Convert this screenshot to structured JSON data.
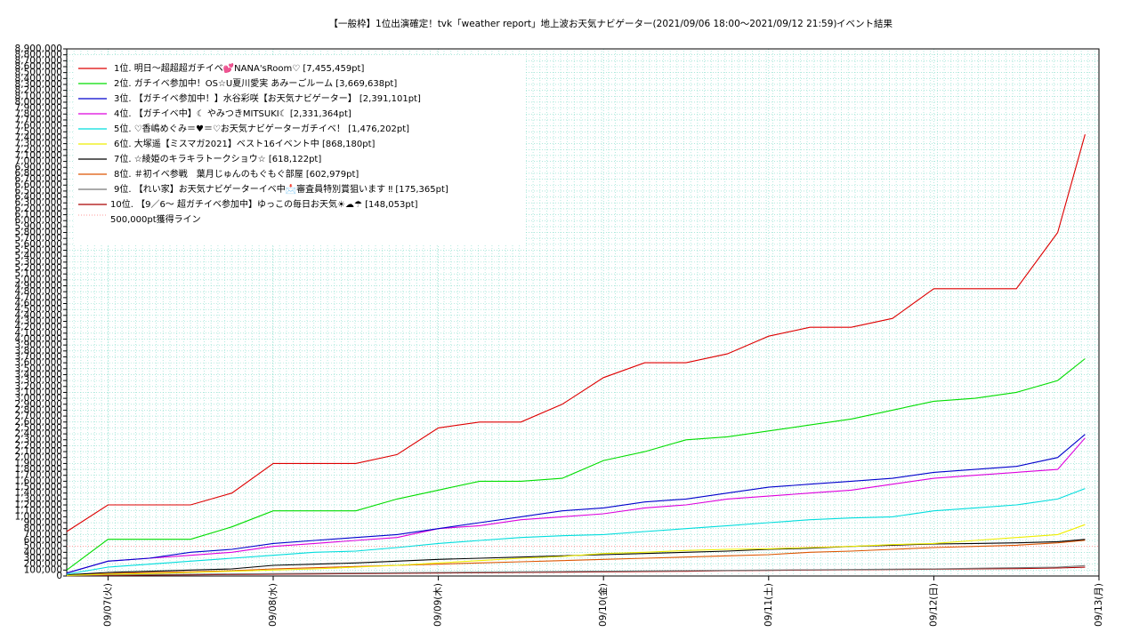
{
  "chart_data": {
    "type": "line",
    "title": "【一般枠】1位出演確定！tvk「weather report」地上波お天気ナビゲーター(2021/09/06 18:00〜2021/09/12 21:59)",
    "subtitle": "イベント結果",
    "x": [
      "09/06 18:00",
      "09/07 00:00",
      "09/07 06:00",
      "09/07 12:00",
      "09/07 18:00",
      "09/08 00:00",
      "09/08 06:00",
      "09/08 12:00",
      "09/08 18:00",
      "09/09 00:00",
      "09/09 06:00",
      "09/09 12:00",
      "09/09 18:00",
      "09/10 00:00",
      "09/10 06:00",
      "09/10 12:00",
      "09/10 18:00",
      "09/11 00:00",
      "09/11 06:00",
      "09/11 12:00",
      "09/11 18:00",
      "09/12 00:00",
      "09/12 06:00",
      "09/12 12:00",
      "09/12 18:00",
      "09/12 21:59"
    ],
    "xlim": [
      "09/06 18:00",
      "09/13 00:00"
    ],
    "xticks": [
      {
        "value": "09/07 00:00",
        "label": "09/07(火)"
      },
      {
        "value": "09/08 00:00",
        "label": "09/08(水)"
      },
      {
        "value": "09/09 00:00",
        "label": "09/09(木)"
      },
      {
        "value": "09/10 00:00",
        "label": "09/10(金)"
      },
      {
        "value": "09/11 00:00",
        "label": "09/11(土)"
      },
      {
        "value": "09/12 00:00",
        "label": "09/12(日)"
      },
      {
        "value": "09/13 00:00",
        "label": "09/13(月)"
      }
    ],
    "ylim": [
      0,
      8900000
    ],
    "yticks": [
      0,
      {
        "value": 100000,
        "label": "100,000"
      },
      {
        "value": 200000,
        "label": "200,000"
      },
      {
        "value": 300000,
        "label": "300,000"
      },
      {
        "value": 400000,
        "label": "400,000"
      },
      {
        "value": 500000,
        "label": "500,000"
      },
      {
        "value": 600000,
        "label": "600,000"
      },
      {
        "value": 700000,
        "label": "700,000"
      },
      {
        "value": 800000,
        "label": "800,000"
      },
      {
        "value": 900000,
        "label": "900,000"
      },
      {
        "value": 1000000,
        "label": "1,000,000"
      },
      {
        "value": 1100000,
        "label": "1,100,000"
      },
      {
        "value": 1200000,
        "label": "1,200,000"
      },
      {
        "value": 1300000,
        "label": "1,300,000"
      },
      {
        "value": 1400000,
        "label": "1,400,000"
      },
      {
        "value": 1500000,
        "label": "1,500,000"
      },
      {
        "value": 1600000,
        "label": "1,600,000"
      },
      {
        "value": 1700000,
        "label": "1,700,000"
      },
      {
        "value": 1800000,
        "label": "1,800,000"
      },
      {
        "value": 1900000,
        "label": "1,900,000"
      },
      {
        "value": 2000000,
        "label": "2,000,000"
      },
      {
        "value": 2100000,
        "label": "2,100,000"
      },
      {
        "value": 2200000,
        "label": "2,200,000"
      },
      {
        "value": 2300000,
        "label": "2,300,000"
      },
      {
        "value": 2400000,
        "label": "2,400,000"
      },
      {
        "value": 2500000,
        "label": "2,500,000"
      },
      {
        "value": 2600000,
        "label": "2,600,000"
      },
      {
        "value": 2700000,
        "label": "2,700,000"
      },
      {
        "value": 2800000,
        "label": "2,800,000"
      },
      {
        "value": 2900000,
        "label": "2,900,000"
      },
      {
        "value": 3000000,
        "label": "3,000,000"
      },
      {
        "value": 3100000,
        "label": "3,100,000"
      },
      {
        "value": 3200000,
        "label": "3,200,000"
      },
      {
        "value": 3300000,
        "label": "3,300,000"
      },
      {
        "value": 3400000,
        "label": "3,400,000"
      },
      {
        "value": 3500000,
        "label": "3,500,000"
      },
      {
        "value": 3600000,
        "label": "3,600,000"
      },
      {
        "value": 3700000,
        "label": "3,700,000"
      },
      {
        "value": 3800000,
        "label": "3,800,000"
      },
      {
        "value": 3900000,
        "label": "3,900,000"
      },
      {
        "value": 4000000,
        "label": "4,000,000"
      },
      {
        "value": 4100000,
        "label": "4,100,000"
      },
      {
        "value": 4200000,
        "label": "4,200,000"
      },
      {
        "value": 4300000,
        "label": "4,300,000"
      },
      {
        "value": 4400000,
        "label": "4,400,000"
      },
      {
        "value": 4500000,
        "label": "4,500,000"
      },
      {
        "value": 4600000,
        "label": "4,600,000"
      },
      {
        "value": 4700000,
        "label": "4,700,000"
      },
      {
        "value": 4800000,
        "label": "4,800,000"
      },
      {
        "value": 4900000,
        "label": "4,900,000"
      },
      {
        "value": 5000000,
        "label": "5,000,000"
      },
      {
        "value": 5100000,
        "label": "5,100,000"
      },
      {
        "value": 5200000,
        "label": "5,200,000"
      },
      {
        "value": 5300000,
        "label": "5,300,000"
      },
      {
        "value": 5400000,
        "label": "5,400,000"
      },
      {
        "value": 5500000,
        "label": "5,500,000"
      },
      {
        "value": 5600000,
        "label": "5,600,000"
      },
      {
        "value": 5700000,
        "label": "5,700,000"
      },
      {
        "value": 5800000,
        "label": "5,800,000"
      },
      {
        "value": 5900000,
        "label": "5,900,000"
      },
      {
        "value": 6000000,
        "label": "6,000,000"
      },
      {
        "value": 6100000,
        "label": "6,100,000"
      },
      {
        "value": 6200000,
        "label": "6,200,000"
      },
      {
        "value": 6300000,
        "label": "6,300,000"
      },
      {
        "value": 6400000,
        "label": "6,400,000"
      },
      {
        "value": 6500000,
        "label": "6,500,000"
      },
      {
        "value": 6600000,
        "label": "6,600,000"
      },
      {
        "value": 6700000,
        "label": "6,700,000"
      },
      {
        "value": 6800000,
        "label": "6,800,000"
      },
      {
        "value": 6900000,
        "label": "6,900,000"
      },
      {
        "value": 7000000,
        "label": "7,000,000"
      },
      {
        "value": 7100000,
        "label": "7,100,000"
      },
      {
        "value": 7200000,
        "label": "7,200,000"
      },
      {
        "value": 7300000,
        "label": "7,300,000"
      },
      {
        "value": 7400000,
        "label": "7,400,000"
      },
      {
        "value": 7500000,
        "label": "7,500,000"
      },
      {
        "value": 7600000,
        "label": "7,600,000"
      },
      {
        "value": 7700000,
        "label": "7,700,000"
      },
      {
        "value": 7800000,
        "label": "7,800,000"
      },
      {
        "value": 7900000,
        "label": "7,900,000"
      },
      {
        "value": 8000000,
        "label": "8,000,000"
      },
      {
        "value": 8100000,
        "label": "8,100,000"
      },
      {
        "value": 8200000,
        "label": "8,200,000"
      },
      {
        "value": 8300000,
        "label": "8,300,000"
      },
      {
        "value": 8400000,
        "label": "8,400,000"
      },
      {
        "value": 8500000,
        "label": "8,500,000"
      },
      {
        "value": 8600000,
        "label": "8,600,000"
      },
      {
        "value": 8700000,
        "label": "8,700,000"
      },
      {
        "value": 8800000,
        "label": "8,800,000"
      },
      {
        "value": 8900000,
        "label": "8,900,000"
      }
    ],
    "grid": true,
    "legend": "top-left",
    "series": [
      {
        "name": "1位. 明日〜超超超ガチイベ💕NANA'sRoom♡ [7,455,459pt]",
        "color": "#dd0000",
        "values": [
          750000,
          1200000,
          1200000,
          1200000,
          1400000,
          1900000,
          1900000,
          1900000,
          2050000,
          2500000,
          2600000,
          2600000,
          2900000,
          3350000,
          3600000,
          3600000,
          3750000,
          4050000,
          4200000,
          4200000,
          4350000,
          4850000,
          4850000,
          4850000,
          5800000,
          7455459
        ]
      },
      {
        "name": "2位. ガチイベ参加中！OS☆U夏川愛実 あみーごルーム [3,669,638pt]",
        "color": "#00dd00",
        "values": [
          100000,
          620000,
          620000,
          620000,
          830000,
          1100000,
          1100000,
          1100000,
          1300000,
          1450000,
          1600000,
          1600000,
          1650000,
          1950000,
          2100000,
          2300000,
          2350000,
          2450000,
          2550000,
          2650000,
          2800000,
          2950000,
          3000000,
          3100000,
          3300000,
          3669638
        ]
      },
      {
        "name": "3位. 【ガチイベ参加中！】水谷彩咲【お天気ナビゲーター】 [2,391,101pt]",
        "color": "#0000cc",
        "values": [
          50000,
          250000,
          300000,
          400000,
          450000,
          550000,
          600000,
          650000,
          700000,
          800000,
          900000,
          1000000,
          1100000,
          1150000,
          1250000,
          1300000,
          1400000,
          1500000,
          1550000,
          1600000,
          1650000,
          1750000,
          1800000,
          1850000,
          2000000,
          2391101
        ]
      },
      {
        "name": "4位. 【ガチイベ中】☾ やみつきMITSUKI☾ [2,331,364pt]",
        "color": "#dd00dd",
        "values": [
          50000,
          250000,
          300000,
          350000,
          400000,
          500000,
          550000,
          600000,
          650000,
          800000,
          850000,
          950000,
          1000000,
          1050000,
          1150000,
          1200000,
          1300000,
          1350000,
          1400000,
          1450000,
          1550000,
          1650000,
          1700000,
          1750000,
          1800000,
          2331364
        ]
      },
      {
        "name": "5位. ♡香嶋めぐみ＝♥＝♡お天気ナビゲーターガチイベ！ [1,476,202pt]",
        "color": "#00dddd",
        "values": [
          30000,
          150000,
          200000,
          250000,
          300000,
          350000,
          400000,
          420000,
          480000,
          550000,
          600000,
          650000,
          680000,
          700000,
          750000,
          800000,
          850000,
          900000,
          950000,
          980000,
          1000000,
          1100000,
          1150000,
          1200000,
          1300000,
          1476202
        ]
      },
      {
        "name": "6位. 大塚遥【ミスマガ2021】ベスト16イベント中 [868,180pt]",
        "color": "#eeee00",
        "values": [
          10000,
          30000,
          40000,
          60000,
          80000,
          100000,
          120000,
          150000,
          180000,
          220000,
          260000,
          300000,
          330000,
          380000,
          400000,
          430000,
          450000,
          460000,
          480000,
          500000,
          530000,
          550000,
          600000,
          650000,
          700000,
          868180
        ]
      },
      {
        "name": "7位. ☆綾姫のキラキラトークショウ☆ [618,122pt]",
        "color": "#000000",
        "values": [
          20000,
          60000,
          80000,
          100000,
          120000,
          180000,
          200000,
          220000,
          250000,
          280000,
          300000,
          320000,
          340000,
          360000,
          380000,
          400000,
          420000,
          450000,
          470000,
          500000,
          520000,
          540000,
          550000,
          560000,
          580000,
          618122
        ]
      },
      {
        "name": "8位. ＃初イベ参戦　葉月じゅんのもぐもぐ部屋 [602,979pt]",
        "color": "#dd5500",
        "values": [
          10000,
          40000,
          60000,
          70000,
          90000,
          120000,
          140000,
          160000,
          180000,
          200000,
          220000,
          240000,
          260000,
          280000,
          300000,
          320000,
          340000,
          360000,
          400000,
          420000,
          450000,
          480000,
          500000,
          520000,
          560000,
          602979
        ]
      },
      {
        "name": "9位. 【れい家】お天気ナビゲーターイベ中📩審査員特別賞狙います ‼ [175,365pt]",
        "color": "#777777",
        "values": [
          5000,
          20000,
          25000,
          30000,
          35000,
          40000,
          45000,
          50000,
          55000,
          60000,
          65000,
          70000,
          75000,
          80000,
          85000,
          90000,
          95000,
          100000,
          105000,
          110000,
          115000,
          120000,
          130000,
          140000,
          150000,
          175365
        ]
      },
      {
        "name": "10位. 【9／6〜 超ガチイベ参加中】ゆっこの毎日お天気☀☁☂ [148,053pt]",
        "color": "#aa0000",
        "values": [
          5000,
          10000,
          15000,
          20000,
          25000,
          30000,
          35000,
          40000,
          45000,
          50000,
          55000,
          60000,
          65000,
          70000,
          75000,
          80000,
          90000,
          95000,
          100000,
          105000,
          110000,
          115000,
          120000,
          125000,
          135000,
          148053
        ]
      }
    ],
    "threshold": {
      "name": "500,000pt獲得ライン",
      "value": 500000,
      "color": "#ff9999"
    }
  }
}
